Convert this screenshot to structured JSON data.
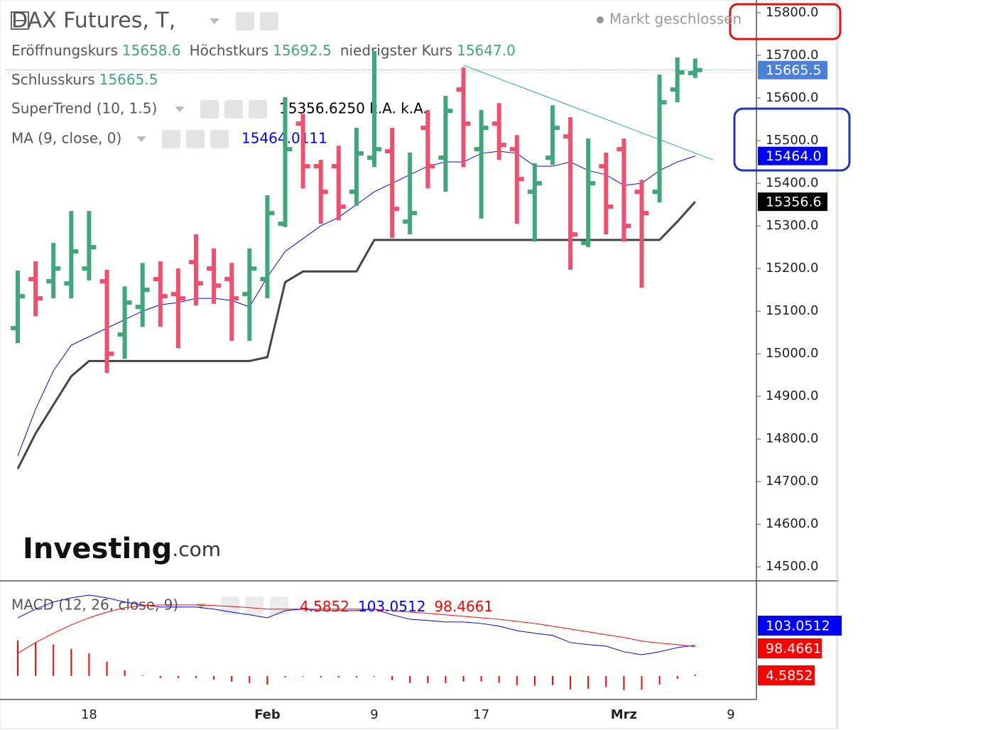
{
  "chart_data": {
    "type": "ohlc",
    "title": "DAX Futures, T,",
    "status": "Markt geschlossen",
    "ohlc_legend": [
      {
        "name": "Eröffnungskurs",
        "value_label": "15658.6"
      },
      {
        "name": "Höchstkurs",
        "value_label": "15692.5"
      },
      {
        "name": "niedrigster Kurs",
        "value_label": "15647.0"
      },
      {
        "name": "Schlusskurs",
        "value_label": "15665.5"
      }
    ],
    "categories": [
      null,
      null,
      null,
      null,
      "18",
      null,
      null,
      null,
      null,
      null,
      null,
      null,
      null,
      null,
      "Feb",
      null,
      null,
      null,
      null,
      null,
      "9",
      null,
      null,
      null,
      null,
      null,
      "17",
      null,
      null,
      null,
      null,
      null,
      null,
      null,
      "Mrz",
      null,
      null,
      null,
      null,
      null,
      "9"
    ],
    "open": [
      15060,
      15175,
      15170,
      15165,
      15200,
      15170,
      15045,
      15110,
      15175,
      15140,
      15215,
      15200,
      15175,
      15140,
      15175,
      15305,
      15540,
      15440,
      15440,
      15380,
      15460,
      15475,
      15310,
      15530,
      15460,
      15620,
      15480,
      15540,
      15480,
      15380,
      15460,
      15510,
      15260,
      15440,
      15480,
      15380,
      15380,
      15620,
      15658.6,
      null,
      null
    ],
    "high": [
      15195,
      15217,
      15260,
      15335,
      15335,
      15197,
      15158,
      15213,
      15217,
      15200,
      15280,
      15247,
      15213,
      15247,
      15372,
      15602,
      15563,
      15455,
      15488,
      15530,
      15710,
      15530,
      15472,
      15572,
      15605,
      15672,
      15572,
      15588,
      15513,
      15447,
      15583,
      15555,
      15505,
      15472,
      15505,
      15408,
      15655,
      15695,
      15692.5,
      null,
      null
    ],
    "low": [
      15025,
      15088,
      15130,
      15130,
      15172,
      14955,
      14988,
      15063,
      15063,
      15013,
      15113,
      15117,
      15030,
      15030,
      15130,
      15297,
      15388,
      15305,
      15313,
      15347,
      15438,
      15272,
      15280,
      15388,
      15380,
      15438,
      15317,
      15455,
      15305,
      15263,
      15443,
      15197,
      15250,
      15280,
      15263,
      15155,
      15355,
      15590,
      15647,
      null,
      null
    ],
    "close": [
      15135,
      15130,
      15200,
      15240,
      15250,
      15000,
      15120,
      15150,
      15135,
      15130,
      15165,
      15160,
      15130,
      15200,
      15330,
      15480,
      15440,
      15380,
      15345,
      15470,
      15480,
      15340,
      15330,
      15440,
      15570,
      15540,
      15530,
      15490,
      15410,
      15400,
      15530,
      15280,
      15400,
      15345,
      15300,
      15330,
      15590,
      15660,
      15665.5,
      null,
      null
    ],
    "up_color": "#3fa77a",
    "down_color": "#f0506e",
    "ylim": [
      14467,
      15830
    ],
    "yticks": [
      {
        "value": 14500,
        "label": "14500.0"
      },
      {
        "value": 14600,
        "label": "14600.0"
      },
      {
        "value": 14700,
        "label": "14700.0"
      },
      {
        "value": 14800,
        "label": "14800.0"
      },
      {
        "value": 14900,
        "label": "14900.0"
      },
      {
        "value": 15000,
        "label": "15000.0"
      },
      {
        "value": 15100,
        "label": "15100.0"
      },
      {
        "value": 15200,
        "label": "15200.0"
      },
      {
        "value": 15300,
        "label": "15300.0"
      },
      {
        "value": 15400,
        "label": "15400.0"
      },
      {
        "value": 15500,
        "label": "15500.0"
      },
      {
        "value": 15600,
        "label": "15600.0"
      },
      {
        "value": 15700,
        "label": "15700.0"
      },
      {
        "value": 15800,
        "label": "15800.0"
      }
    ],
    "grid": false,
    "price_labels": [
      {
        "value": 15665.5,
        "label": "15665.5",
        "color": "#4a80d8"
      },
      {
        "value": 15464,
        "label": "15464.0",
        "color": "#0000ff"
      },
      {
        "value": 15356.6,
        "label": "15356.6",
        "color": "#000000"
      }
    ],
    "overlays": [
      {
        "name": "SuperTrend (10, 1.5)",
        "value_label": "15356.6250 k.A. k.A.",
        "color": "#444444",
        "values": [
          14730,
          14813,
          14880,
          14947,
          14983,
          14983,
          14983,
          14983,
          14983,
          14983,
          14983,
          14983,
          14983,
          14983,
          14992,
          15168,
          15193,
          15193,
          15193,
          15193,
          15267,
          15267,
          15267,
          15267,
          15267,
          15267,
          15267,
          15267,
          15267,
          15267,
          15267,
          15267,
          15267,
          15267,
          15267,
          15267,
          15267,
          15310,
          15356.625,
          null,
          null
        ]
      },
      {
        "name": "MA (9, close, 0)",
        "value_label": "15464.0111",
        "color": "#0000ff",
        "values": [
          14760,
          14870,
          14960,
          15020,
          15040,
          15060,
          15080,
          15100,
          15115,
          15120,
          15130,
          15130,
          15125,
          15110,
          15180,
          15240,
          15270,
          15300,
          15320,
          15350,
          15380,
          15400,
          15420,
          15440,
          15450,
          15450,
          15470,
          15475,
          15470,
          15440,
          15440,
          15450,
          15430,
          15420,
          15395,
          15400,
          15430,
          15450,
          15464.0111,
          null,
          null
        ]
      }
    ],
    "trendline": {
      "x": [
        25,
        39
      ],
      "y": [
        15677,
        15455
      ],
      "color": "#26a69a"
    },
    "macd": {
      "name": "MACD (12, 26, close, 9)",
      "ylim": [
        -79,
        314
      ],
      "histogram": {
        "color": "#ff0000",
        "values": [
          119,
          112,
          105,
          91,
          76,
          48,
          19,
          2,
          -7,
          -7,
          -7,
          -12,
          -19,
          -24,
          -29,
          -5,
          0,
          -5,
          -5,
          -5,
          0,
          -14,
          -24,
          -24,
          -24,
          -19,
          -19,
          -23,
          -31,
          -33,
          -31,
          -45,
          -43,
          -38,
          -48,
          -46,
          -29,
          -10,
          4.5852,
          null,
          null
        ]
      },
      "macd_line": {
        "color": "#0000ff",
        "values": [
          195,
          224,
          248,
          262,
          271,
          262,
          248,
          238,
          231,
          231,
          231,
          224,
          214,
          205,
          195,
          219,
          224,
          219,
          219,
          219,
          224,
          205,
          190,
          186,
          181,
          181,
          176,
          167,
          152,
          143,
          136,
          112,
          105,
          100,
          81,
          71,
          81,
          95,
          103.0512,
          null,
          null
        ]
      },
      "signal_line": {
        "color": "#ff0000",
        "values": [
          76,
          112,
          143,
          171,
          195,
          214,
          229,
          236,
          238,
          238,
          238,
          236,
          233,
          229,
          224,
          224,
          224,
          224,
          224,
          224,
          224,
          219,
          214,
          210,
          205,
          200,
          195,
          190,
          183,
          176,
          167,
          157,
          148,
          138,
          129,
          117,
          110,
          105,
          98.4661,
          null,
          null
        ]
      }
    }
  },
  "logo": {
    "main": "Investing",
    "suffix": ".com"
  }
}
